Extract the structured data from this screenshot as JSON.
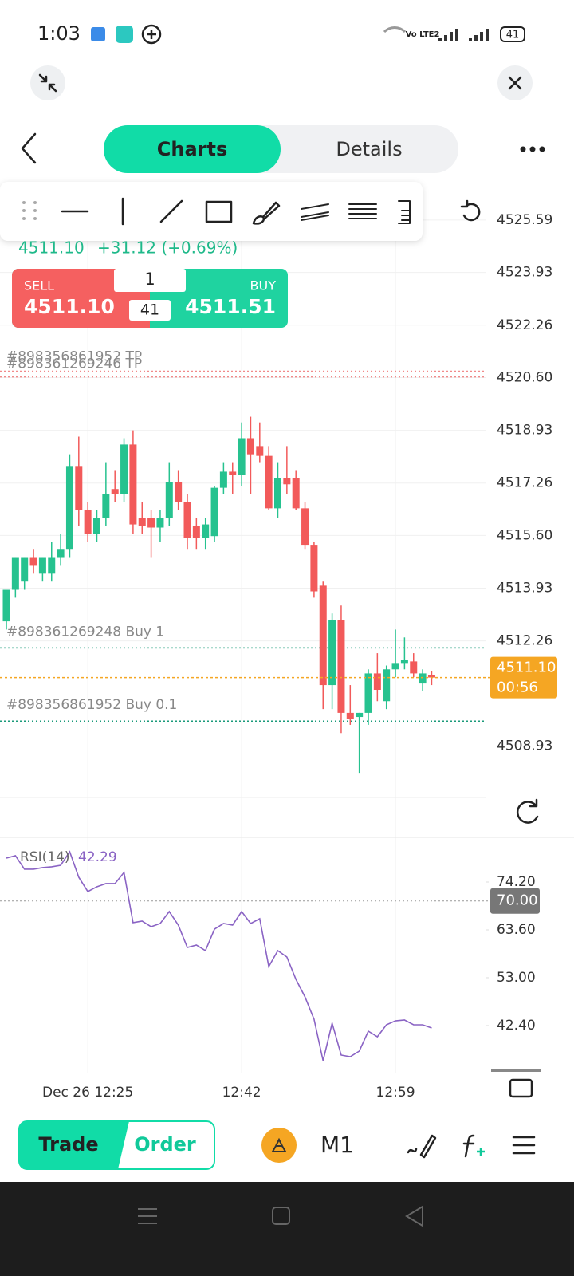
{
  "status_bar": {
    "time": "1:03",
    "network": "Vo LTE2",
    "battery": "41"
  },
  "tabs": [
    "Charts",
    "Details"
  ],
  "quote": {
    "last": "4511.10",
    "change": "+31.12 (+0.69%)"
  },
  "order_panel": {
    "sell_label": "SELL",
    "sell_price": "4511.10",
    "buy_label": "BUY",
    "buy_price": "4511.51",
    "volume": "1",
    "spread": "41"
  },
  "chart_data": [
    {
      "type": "candlestick",
      "categories": [
        null,
        null,
        null,
        null,
        null,
        null,
        null,
        null,
        null,
        "Dec 26 12:25",
        null,
        null,
        null,
        null,
        null,
        null,
        null,
        null,
        null,
        null,
        null,
        null,
        null,
        null,
        null,
        null,
        "12:42",
        null,
        null,
        null,
        null,
        null,
        null,
        null,
        null,
        null,
        null,
        null,
        null,
        null,
        null,
        null,
        null,
        "12:59",
        null,
        null,
        null,
        null
      ],
      "open": [
        4512.88,
        4513.88,
        4514.14,
        4514.89,
        4514.39,
        4514.39,
        4514.89,
        4515.15,
        4517.8,
        4516.41,
        4515.65,
        4516.16,
        4517.07,
        4516.91,
        4518.48,
        4516.16,
        4516.16,
        4515.85,
        4516.16,
        4517.29,
        4516.66,
        4515.9,
        4515.53,
        4515.58,
        4517.11,
        4517.62,
        4517.52,
        4518.68,
        4518.43,
        4518.12,
        4516.46,
        4517.42,
        4517.42,
        4516.46,
        4515.28,
        4514.01,
        4510.86,
        4512.93,
        4509.98,
        4509.85,
        4509.98,
        4511.23,
        4510.35,
        4511.36,
        4511.56,
        4511.61,
        4510.91,
        4511.18
      ],
      "high": [
        4513.88,
        4514.89,
        4514.89,
        4515.15,
        4514.89,
        4515.4,
        4515.65,
        4518.17,
        4518.73,
        4516.66,
        4516.41,
        4517.92,
        4517.67,
        4518.68,
        4518.93,
        4516.66,
        4516.41,
        4516.41,
        4517.92,
        4517.67,
        4516.91,
        4516.16,
        4516.16,
        4517.16,
        4517.92,
        4517.92,
        4519.18,
        4519.36,
        4519.18,
        4518.43,
        4517.92,
        4518.43,
        4517.67,
        4516.66,
        4515.4,
        4514.14,
        4513.13,
        4513.38,
        4510.86,
        4509.98,
        4511.36,
        4511.87,
        4511.48,
        4512.62,
        4512.37,
        4511.87,
        4511.36,
        4511.31
      ],
      "low": [
        4512.62,
        4513.63,
        4513.88,
        4514.39,
        4514.14,
        4514.14,
        4514.64,
        4514.89,
        4515.9,
        4515.4,
        4515.4,
        4515.9,
        4516.66,
        4516.66,
        4515.65,
        4515.65,
        4514.89,
        4515.4,
        4515.9,
        4516.41,
        4515.15,
        4515.15,
        4515.15,
        4515.4,
        4516.91,
        4516.91,
        4517.16,
        4516.91,
        4517.92,
        4516.41,
        4516.16,
        4516.91,
        4516.41,
        4515.15,
        4513.63,
        4510.1,
        4510.1,
        4509.34,
        4509.6,
        4508.08,
        4509.6,
        4510.35,
        4510.1,
        4511.11,
        4511.36,
        4511.11,
        4510.66,
        4510.86
      ],
      "close": [
        4513.88,
        4514.89,
        4514.89,
        4514.64,
        4514.89,
        4514.89,
        4515.15,
        4517.8,
        4516.41,
        4515.65,
        4516.16,
        4516.91,
        4516.91,
        4518.48,
        4515.95,
        4515.9,
        4515.85,
        4516.16,
        4517.29,
        4516.66,
        4515.53,
        4515.53,
        4515.95,
        4517.11,
        4517.62,
        4517.52,
        4518.68,
        4518.17,
        4518.12,
        4516.46,
        4517.42,
        4517.22,
        4516.46,
        4515.28,
        4513.83,
        4510.86,
        4512.93,
        4509.98,
        4509.8,
        4509.98,
        4511.23,
        4510.71,
        4511.36,
        4511.56,
        4511.66,
        4511.23,
        4511.23,
        4511.1
      ],
      "up_color": "#26c28f",
      "down_color": "#f25a5a",
      "ylim": [
        4507.3,
        4526.75
      ],
      "yticks": [
        4525.59,
        4523.93,
        4522.26,
        {
          "value": 4520.6,
          "label": "4520.60"
        },
        4518.93,
        4517.26,
        {
          "value": 4515.6,
          "label": "4515.60"
        },
        4513.93,
        4512.26,
        4508.93
      ],
      "grid": true,
      "price_lines": [
        {
          "label": "#898356861952 TP",
          "value": 4520.8,
          "color": "#f08a8a"
        },
        {
          "label": "#898361269246 TP",
          "value": 4520.62,
          "color": "#f08a8a"
        },
        {
          "label": "#898361269248 Buy 1",
          "value": 4512.04,
          "color": "#1a9a7a"
        },
        {
          "label": "#898356861952 Buy 0.1",
          "value": 4509.72,
          "color": "#1a9a7a"
        }
      ],
      "current_price": {
        "value": 4511.1,
        "label": "4511.10",
        "countdown": "00:56",
        "color": "#f5a623"
      }
    },
    {
      "type": "line",
      "series": [
        {
          "name": "RSI(14)",
          "color": "#8a63c4",
          "values": [
            79.5,
            80.03,
            77.03,
            77.03,
            77.38,
            77.56,
            77.91,
            80.91,
            75.26,
            72.08,
            73.14,
            73.85,
            73.85,
            76.32,
            65.19,
            65.54,
            64.3,
            65.01,
            67.66,
            64.66,
            59.71,
            60.24,
            59.0,
            63.77,
            65.01,
            64.66,
            67.66,
            65.01,
            66.07,
            55.47,
            59.0,
            57.59,
            52.64,
            48.76,
            43.81,
            34.62,
            42.92,
            35.86,
            35.5,
            36.74,
            41.16,
            39.92,
            42.57,
            43.45,
            43.63,
            42.57,
            42.57,
            41.86
          ]
        }
      ],
      "current_value": 42.29,
      "ylim": [
        31.97,
        84.09
      ],
      "yticks": [
        {
          "value": 74.2,
          "label": "74.20"
        },
        {
          "value": 63.6,
          "label": "63.60"
        },
        {
          "value": 53.0,
          "label": "53.00"
        },
        {
          "value": 42.4,
          "label": "42.40"
        }
      ],
      "level": {
        "value": 70.0,
        "label": "70.00"
      }
    }
  ],
  "bottom_bar": {
    "trade": "Trade",
    "order": "Order",
    "timeframe": "M1"
  }
}
